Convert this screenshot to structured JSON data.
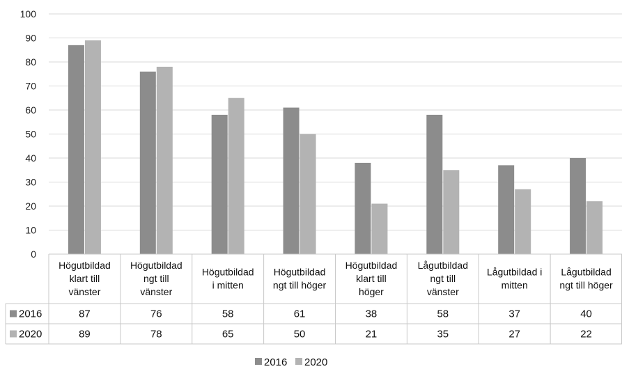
{
  "chart_data": {
    "type": "bar",
    "categories": [
      [
        "Högutbildad",
        "klart till",
        "vänster"
      ],
      [
        "Högutbildad",
        "ngt till",
        "vänster"
      ],
      [
        "Högutbildad",
        "i mitten"
      ],
      [
        "Högutbildad",
        "ngt till höger"
      ],
      [
        "Högutbildad",
        "klart till",
        "höger"
      ],
      [
        "Lågutbildad",
        "ngt till",
        "vänster"
      ],
      [
        "Lågutbildad i",
        "mitten"
      ],
      [
        "Lågutbildad",
        "ngt till höger"
      ]
    ],
    "series": [
      {
        "name": "2016",
        "values": [
          87,
          76,
          58,
          61,
          38,
          58,
          37,
          40
        ]
      },
      {
        "name": "2020",
        "values": [
          89,
          78,
          65,
          50,
          21,
          35,
          27,
          22
        ]
      }
    ],
    "ylim": [
      0,
      100
    ],
    "yticks": [
      0,
      10,
      20,
      30,
      40,
      50,
      60,
      70,
      80,
      90,
      100
    ],
    "grid": true,
    "legend": "bottom-center",
    "data_table": true,
    "colors": {
      "2016": "#8c8c8c",
      "2020": "#b3b3b3"
    }
  }
}
